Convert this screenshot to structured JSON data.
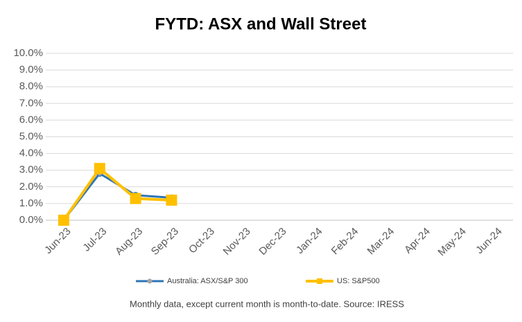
{
  "chart_data": {
    "type": "line",
    "title": "FYTD: ASX and Wall Street",
    "note": "Monthly data, except current month is month-to-date.  Source: IRESS",
    "categories": [
      "Jun-23",
      "Jul-23",
      "Aug-23",
      "Sep-23",
      "Oct-23",
      "Nov-23",
      "Dec-23",
      "Jan-24",
      "Feb-24",
      "Mar-24",
      "Apr-24",
      "May-24",
      "Jun-24"
    ],
    "series": [
      {
        "name": "Australia: ASX/S&P 300",
        "color": "#2e75b6",
        "marker_color": "#a5a5a5",
        "values": [
          0,
          2.8,
          1.5,
          1.35,
          null,
          null,
          null,
          null,
          null,
          null,
          null,
          null,
          null
        ]
      },
      {
        "name": "US: S&P500",
        "color": "#ffc000",
        "marker_color": "#ffc000",
        "values": [
          0,
          3.1,
          1.3,
          1.2,
          null,
          null,
          null,
          null,
          null,
          null,
          null,
          null,
          null
        ]
      }
    ],
    "ylim": [
      0,
      10
    ],
    "yticks": [
      {
        "value": 0,
        "label": "0.0%"
      },
      {
        "value": 1,
        "label": "1.0%"
      },
      {
        "value": 2,
        "label": "2.0%"
      },
      {
        "value": 3,
        "label": "3.0%"
      },
      {
        "value": 4,
        "label": "4.0%"
      },
      {
        "value": 5,
        "label": "5.0%"
      },
      {
        "value": 6,
        "label": "6.0%"
      },
      {
        "value": 7,
        "label": "7.0%"
      },
      {
        "value": 8,
        "label": "8.0%"
      },
      {
        "value": 9,
        "label": "9.0%"
      },
      {
        "value": 10,
        "label": "10.0%"
      }
    ],
    "grid": true,
    "legend": "bottom"
  }
}
